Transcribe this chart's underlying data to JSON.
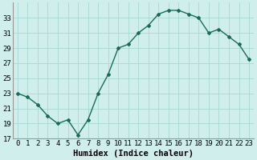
{
  "x": [
    0,
    1,
    2,
    3,
    4,
    5,
    6,
    7,
    8,
    9,
    10,
    11,
    12,
    13,
    14,
    15,
    16,
    17,
    18,
    19,
    20,
    21,
    22,
    23
  ],
  "y": [
    23,
    22.5,
    21.5,
    20,
    19,
    19.5,
    17.5,
    19.5,
    23,
    25.5,
    29,
    29.5,
    31,
    32,
    33.5,
    34,
    34,
    33.5,
    33,
    31,
    31.5,
    30.5,
    29.5,
    27.5
  ],
  "line_color": "#1a6b5a",
  "marker": "D",
  "marker_size": 2,
  "bg_color": "#d0eeec",
  "grid_color": "#a8d8d4",
  "xlabel": "Humidex (Indice chaleur)",
  "xlim": [
    -0.5,
    23.5
  ],
  "ylim": [
    17,
    35
  ],
  "yticks": [
    17,
    19,
    21,
    23,
    25,
    27,
    29,
    31,
    33
  ],
  "xtick_labels": [
    "0",
    "1",
    "2",
    "3",
    "4",
    "5",
    "6",
    "7",
    "8",
    "9",
    "10",
    "11",
    "12",
    "13",
    "14",
    "15",
    "16",
    "17",
    "18",
    "19",
    "20",
    "21",
    "22",
    "23"
  ],
  "xlabel_fontsize": 7.5,
  "tick_fontsize": 6.5,
  "line_width": 1.0
}
